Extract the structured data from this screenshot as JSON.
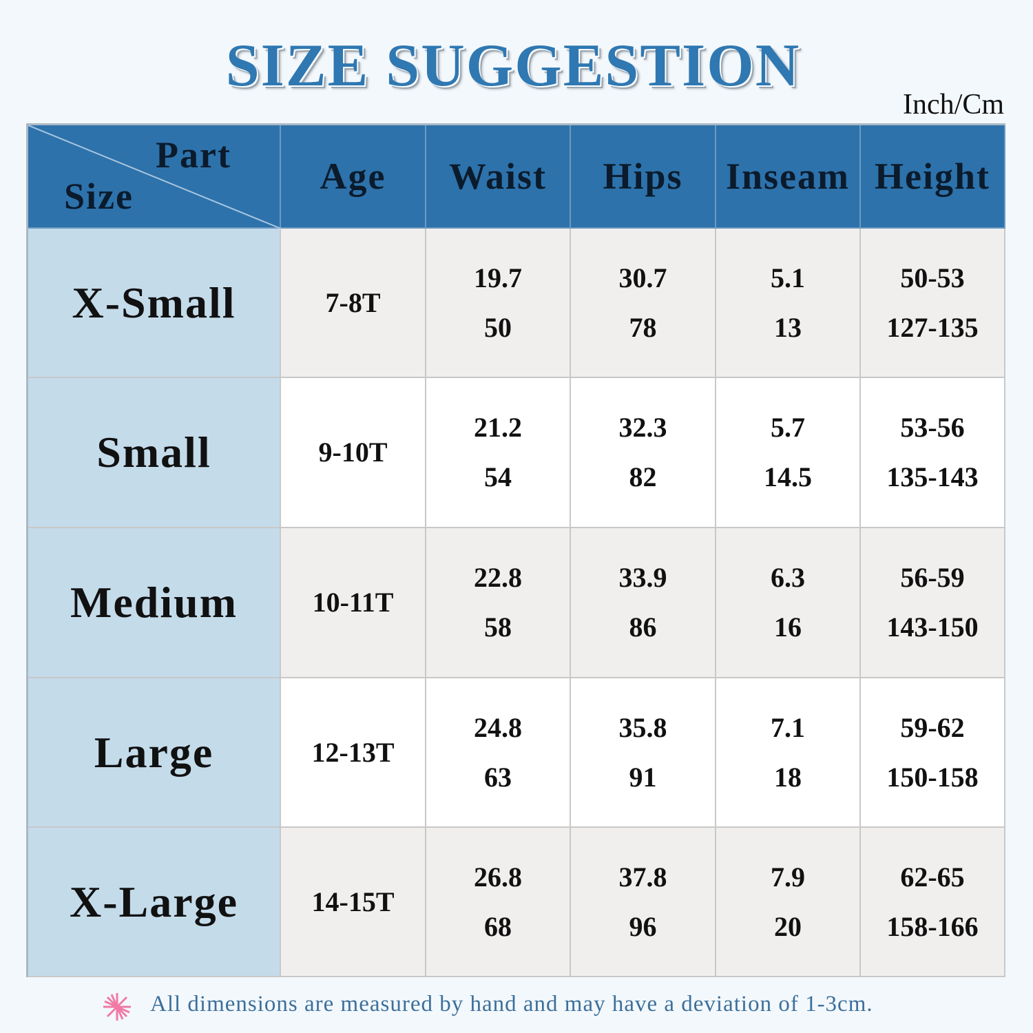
{
  "title": "SIZE SUGGESTION",
  "unit": "Inch/Cm",
  "header": {
    "part": "Part",
    "size": "Size",
    "columns": [
      "Age",
      "Waist",
      "Hips",
      "Inseam",
      "Height"
    ]
  },
  "rows": [
    {
      "size": "X-Small",
      "cells": [
        [
          "7-8T"
        ],
        [
          "19.7",
          "50"
        ],
        [
          "30.7",
          "78"
        ],
        [
          "5.1",
          "13"
        ],
        [
          "50-53",
          "127-135"
        ]
      ]
    },
    {
      "size": "Small",
      "cells": [
        [
          "9-10T"
        ],
        [
          "21.2",
          "54"
        ],
        [
          "32.3",
          "82"
        ],
        [
          "5.7",
          "14.5"
        ],
        [
          "53-56",
          "135-143"
        ]
      ]
    },
    {
      "size": "Medium",
      "cells": [
        [
          "10-11T"
        ],
        [
          "22.8",
          "58"
        ],
        [
          "33.9",
          "86"
        ],
        [
          "6.3",
          "16"
        ],
        [
          "56-59",
          "143-150"
        ]
      ]
    },
    {
      "size": "Large",
      "cells": [
        [
          "12-13T"
        ],
        [
          "24.8",
          "63"
        ],
        [
          "35.8",
          "91"
        ],
        [
          "7.1",
          "18"
        ],
        [
          "59-62",
          "150-158"
        ]
      ]
    },
    {
      "size": "X-Large",
      "cells": [
        [
          "14-15T"
        ],
        [
          "26.8",
          "68"
        ],
        [
          "37.8",
          "96"
        ],
        [
          "7.9",
          "20"
        ],
        [
          "62-65",
          "158-166"
        ]
      ]
    }
  ],
  "note": "All dimensions are measured by hand and may have a deviation of 1-3cm."
}
